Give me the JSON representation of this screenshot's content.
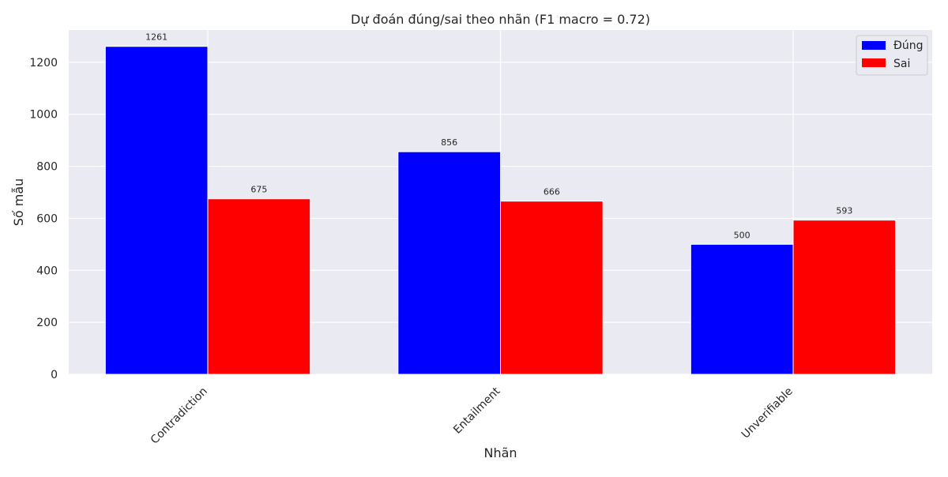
{
  "chart_data": {
    "type": "bar",
    "title": "Dự đoán đúng/sai theo nhãn (F1 macro = 0.72)",
    "xlabel": "Nhãn",
    "ylabel": "Số mẫu",
    "categories": [
      "Contradiction",
      "Entailment",
      "Unverifiable"
    ],
    "series": [
      {
        "name": "Đúng",
        "color": "#0000ff",
        "values": [
          1261,
          856,
          500
        ]
      },
      {
        "name": "Sai",
        "color": "#ff0000",
        "values": [
          675,
          666,
          593
        ]
      }
    ],
    "ylim": [
      0,
      1324
    ],
    "yticks": [
      0,
      200,
      400,
      600,
      800,
      1000,
      1200
    ],
    "grid": true,
    "legend_position": "top-right",
    "background_color": "#eaeaf2"
  }
}
